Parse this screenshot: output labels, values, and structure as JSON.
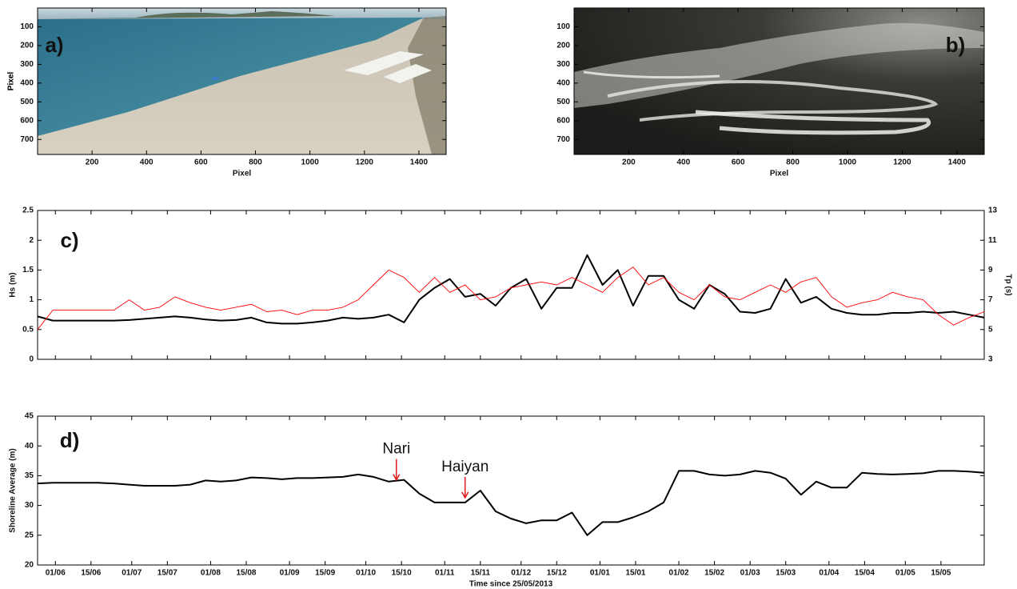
{
  "chart_data": [
    {
      "type": "image",
      "label": "a)",
      "xlabel": "Pixel",
      "ylabel": "Pixel",
      "xlim": [
        0,
        1500
      ],
      "ylim": [
        780,
        0
      ],
      "xticks": [
        200,
        400,
        600,
        800,
        1000,
        1200,
        1400
      ],
      "yticks": [
        100,
        200,
        300,
        400,
        500,
        600,
        700
      ]
    },
    {
      "type": "image",
      "label": "b)",
      "xlabel": "Pixel",
      "ylabel": "Pixel",
      "xlim": [
        0,
        1500
      ],
      "ylim": [
        780,
        0
      ],
      "xticks": [
        200,
        400,
        600,
        800,
        1000,
        1200,
        1400
      ],
      "yticks": [
        100,
        200,
        300,
        400,
        500,
        600,
        700
      ]
    },
    {
      "type": "line",
      "label": "c)",
      "ylabel": "Hs (m)",
      "y2label": "Tp (s)",
      "xlim": [
        0,
        372
      ],
      "ylim": [
        0,
        2.5
      ],
      "y2lim": [
        3,
        13
      ],
      "xticks": [
        7,
        21,
        37,
        51,
        68,
        82,
        99,
        113,
        129,
        143,
        160,
        174,
        190,
        204,
        221,
        235,
        252,
        266,
        280,
        294,
        311,
        325,
        341,
        355
      ],
      "yticks": [
        0,
        0.5,
        1,
        1.5,
        2,
        2.5
      ],
      "y2ticks": [
        3,
        5,
        7,
        9,
        11,
        13
      ],
      "x": [
        0,
        6,
        12,
        18,
        24,
        30,
        36,
        42,
        48,
        54,
        60,
        66,
        72,
        78,
        84,
        90,
        96,
        102,
        108,
        114,
        120,
        126,
        132,
        138,
        144,
        150,
        156,
        162,
        168,
        174,
        180,
        186,
        192,
        198,
        204,
        210,
        216,
        222,
        228,
        234,
        240,
        246,
        252,
        258,
        264,
        270,
        276,
        282,
        288,
        294,
        300,
        306,
        312,
        318,
        324,
        330,
        336,
        342,
        348,
        354,
        360,
        366,
        372
      ],
      "series": [
        {
          "name": "Hs",
          "color": "#000000",
          "axis": "y",
          "values": [
            0.72,
            0.65,
            0.65,
            0.65,
            0.65,
            0.65,
            0.66,
            0.68,
            0.7,
            0.72,
            0.7,
            0.67,
            0.65,
            0.66,
            0.7,
            0.62,
            0.6,
            0.6,
            0.62,
            0.65,
            0.7,
            0.68,
            0.7,
            0.75,
            0.62,
            1.0,
            1.2,
            1.35,
            1.05,
            1.1,
            0.9,
            1.2,
            1.35,
            0.85,
            1.2,
            1.2,
            1.75,
            1.25,
            1.5,
            0.9,
            1.4,
            1.4,
            1.0,
            0.85,
            1.25,
            1.1,
            0.8,
            0.78,
            0.85,
            1.35,
            0.95,
            1.05,
            0.85,
            0.78,
            0.75,
            0.75,
            0.78,
            0.78,
            0.8,
            0.78,
            0.8,
            0.75,
            0.7
          ]
        },
        {
          "name": "Tp",
          "color": "#ff0000",
          "axis": "y2",
          "values": [
            5.0,
            6.3,
            6.3,
            6.3,
            6.3,
            6.3,
            7.0,
            6.3,
            6.5,
            7.2,
            6.8,
            6.5,
            6.3,
            6.5,
            6.7,
            6.2,
            6.3,
            6.0,
            6.3,
            6.3,
            6.5,
            7.0,
            8.0,
            9.0,
            8.5,
            7.5,
            8.5,
            7.5,
            8.0,
            7.0,
            7.2,
            7.8,
            8.0,
            8.2,
            8.0,
            8.5,
            8.0,
            7.5,
            8.5,
            9.2,
            8.0,
            8.5,
            7.5,
            7.0,
            8.0,
            7.2,
            7.0,
            7.5,
            8.0,
            7.5,
            8.2,
            8.5,
            7.2,
            6.5,
            6.8,
            7.0,
            7.5,
            7.2,
            7.0,
            6.0,
            5.3,
            5.8,
            6.2
          ]
        }
      ]
    },
    {
      "type": "line",
      "label": "d)",
      "ylabel": "Shoreline Average (m)",
      "xlabel": "Time since 25/05/2013",
      "xlim": [
        0,
        372
      ],
      "ylim": [
        20,
        45
      ],
      "xticks": [
        {
          "value": 7,
          "label": "01/06"
        },
        {
          "value": 21,
          "label": "15/06"
        },
        {
          "value": 37,
          "label": "01/07"
        },
        {
          "value": 51,
          "label": "15/07"
        },
        {
          "value": 68,
          "label": "01/08"
        },
        {
          "value": 82,
          "label": "15/08"
        },
        {
          "value": 99,
          "label": "01/09"
        },
        {
          "value": 113,
          "label": "15/09"
        },
        {
          "value": 129,
          "label": "01/10"
        },
        {
          "value": 143,
          "label": "15/10"
        },
        {
          "value": 160,
          "label": "01/11"
        },
        {
          "value": 174,
          "label": "15/11"
        },
        {
          "value": 190,
          "label": "01/12"
        },
        {
          "value": 204,
          "label": "15/12"
        },
        {
          "value": 221,
          "label": "01/01"
        },
        {
          "value": 235,
          "label": "15/01"
        },
        {
          "value": 252,
          "label": "01/02"
        },
        {
          "value": 266,
          "label": "15/02"
        },
        {
          "value": 280,
          "label": "01/03"
        },
        {
          "value": 294,
          "label": "15/03"
        },
        {
          "value": 311,
          "label": "01/04"
        },
        {
          "value": 325,
          "label": "15/04"
        },
        {
          "value": 341,
          "label": "01/05"
        },
        {
          "value": 355,
          "label": "15/05"
        }
      ],
      "yticks": [
        20,
        25,
        30,
        35,
        40,
        45
      ],
      "x": [
        0,
        6,
        12,
        18,
        24,
        30,
        36,
        42,
        48,
        54,
        60,
        66,
        72,
        78,
        84,
        90,
        96,
        102,
        108,
        114,
        120,
        126,
        132,
        138,
        144,
        150,
        156,
        162,
        168,
        174,
        180,
        186,
        192,
        198,
        204,
        210,
        216,
        222,
        228,
        234,
        240,
        246,
        252,
        258,
        264,
        270,
        276,
        282,
        288,
        294,
        300,
        306,
        312,
        318,
        324,
        330,
        336,
        342,
        348,
        354,
        360,
        366,
        372
      ],
      "series": [
        {
          "name": "Shoreline Average",
          "color": "#000000",
          "axis": "y",
          "values": [
            33.7,
            33.8,
            33.8,
            33.8,
            33.8,
            33.7,
            33.5,
            33.3,
            33.3,
            33.3,
            33.5,
            34.2,
            34.0,
            34.2,
            34.7,
            34.6,
            34.4,
            34.6,
            34.6,
            34.7,
            34.8,
            35.2,
            34.8,
            34.0,
            34.3,
            32.0,
            30.5,
            30.5,
            30.5,
            32.5,
            29.0,
            27.8,
            27.0,
            27.5,
            27.5,
            28.8,
            25.0,
            27.2,
            27.2,
            28.0,
            29.0,
            30.5,
            35.8,
            35.8,
            35.2,
            35.0,
            35.2,
            35.8,
            35.5,
            34.5,
            31.8,
            34.0,
            33.0,
            33.0,
            35.5,
            35.3,
            35.2,
            35.3,
            35.4,
            35.8,
            35.8,
            35.7,
            35.5
          ]
        }
      ],
      "annotations": [
        {
          "text": "Nari",
          "x": 141,
          "y": 34.3,
          "color": "#e31a1c"
        },
        {
          "text": "Haiyan",
          "x": 168,
          "y": 31.3,
          "color": "#e31a1c"
        }
      ]
    }
  ]
}
